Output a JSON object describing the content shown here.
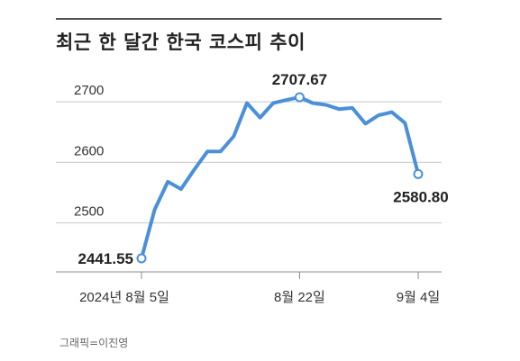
{
  "chart_data": {
    "type": "line",
    "title": "최근 한 달간 한국 코스피 추이",
    "xlabel": "",
    "ylabel": "",
    "credit": "그래픽=이진영",
    "ylim": [
      2420,
      2730
    ],
    "y_ticks": [
      2500,
      2600,
      2700
    ],
    "x_tick_labels": [
      {
        "index": 0,
        "label": "2024년 8월 5일"
      },
      {
        "index": 13,
        "label": "8월 22일"
      },
      {
        "index": 22,
        "label": "9월 4일"
      }
    ],
    "grid": true,
    "line_color": "#4a90d9",
    "series": [
      {
        "values": [
          2441.55,
          2522,
          2568,
          2556,
          2588,
          2618,
          2618,
          2643,
          2698,
          2674,
          2698,
          2703,
          2707.67,
          2698,
          2695,
          2688,
          2690,
          2664,
          2678,
          2683,
          2665,
          2580.8
        ]
      }
    ],
    "annotations": [
      {
        "index": 0,
        "text": "2441.55",
        "position": "left"
      },
      {
        "index": 12,
        "text": "2707.67",
        "position": "top"
      },
      {
        "index": 21,
        "text": "2580.80",
        "position": "bottom"
      }
    ]
  }
}
